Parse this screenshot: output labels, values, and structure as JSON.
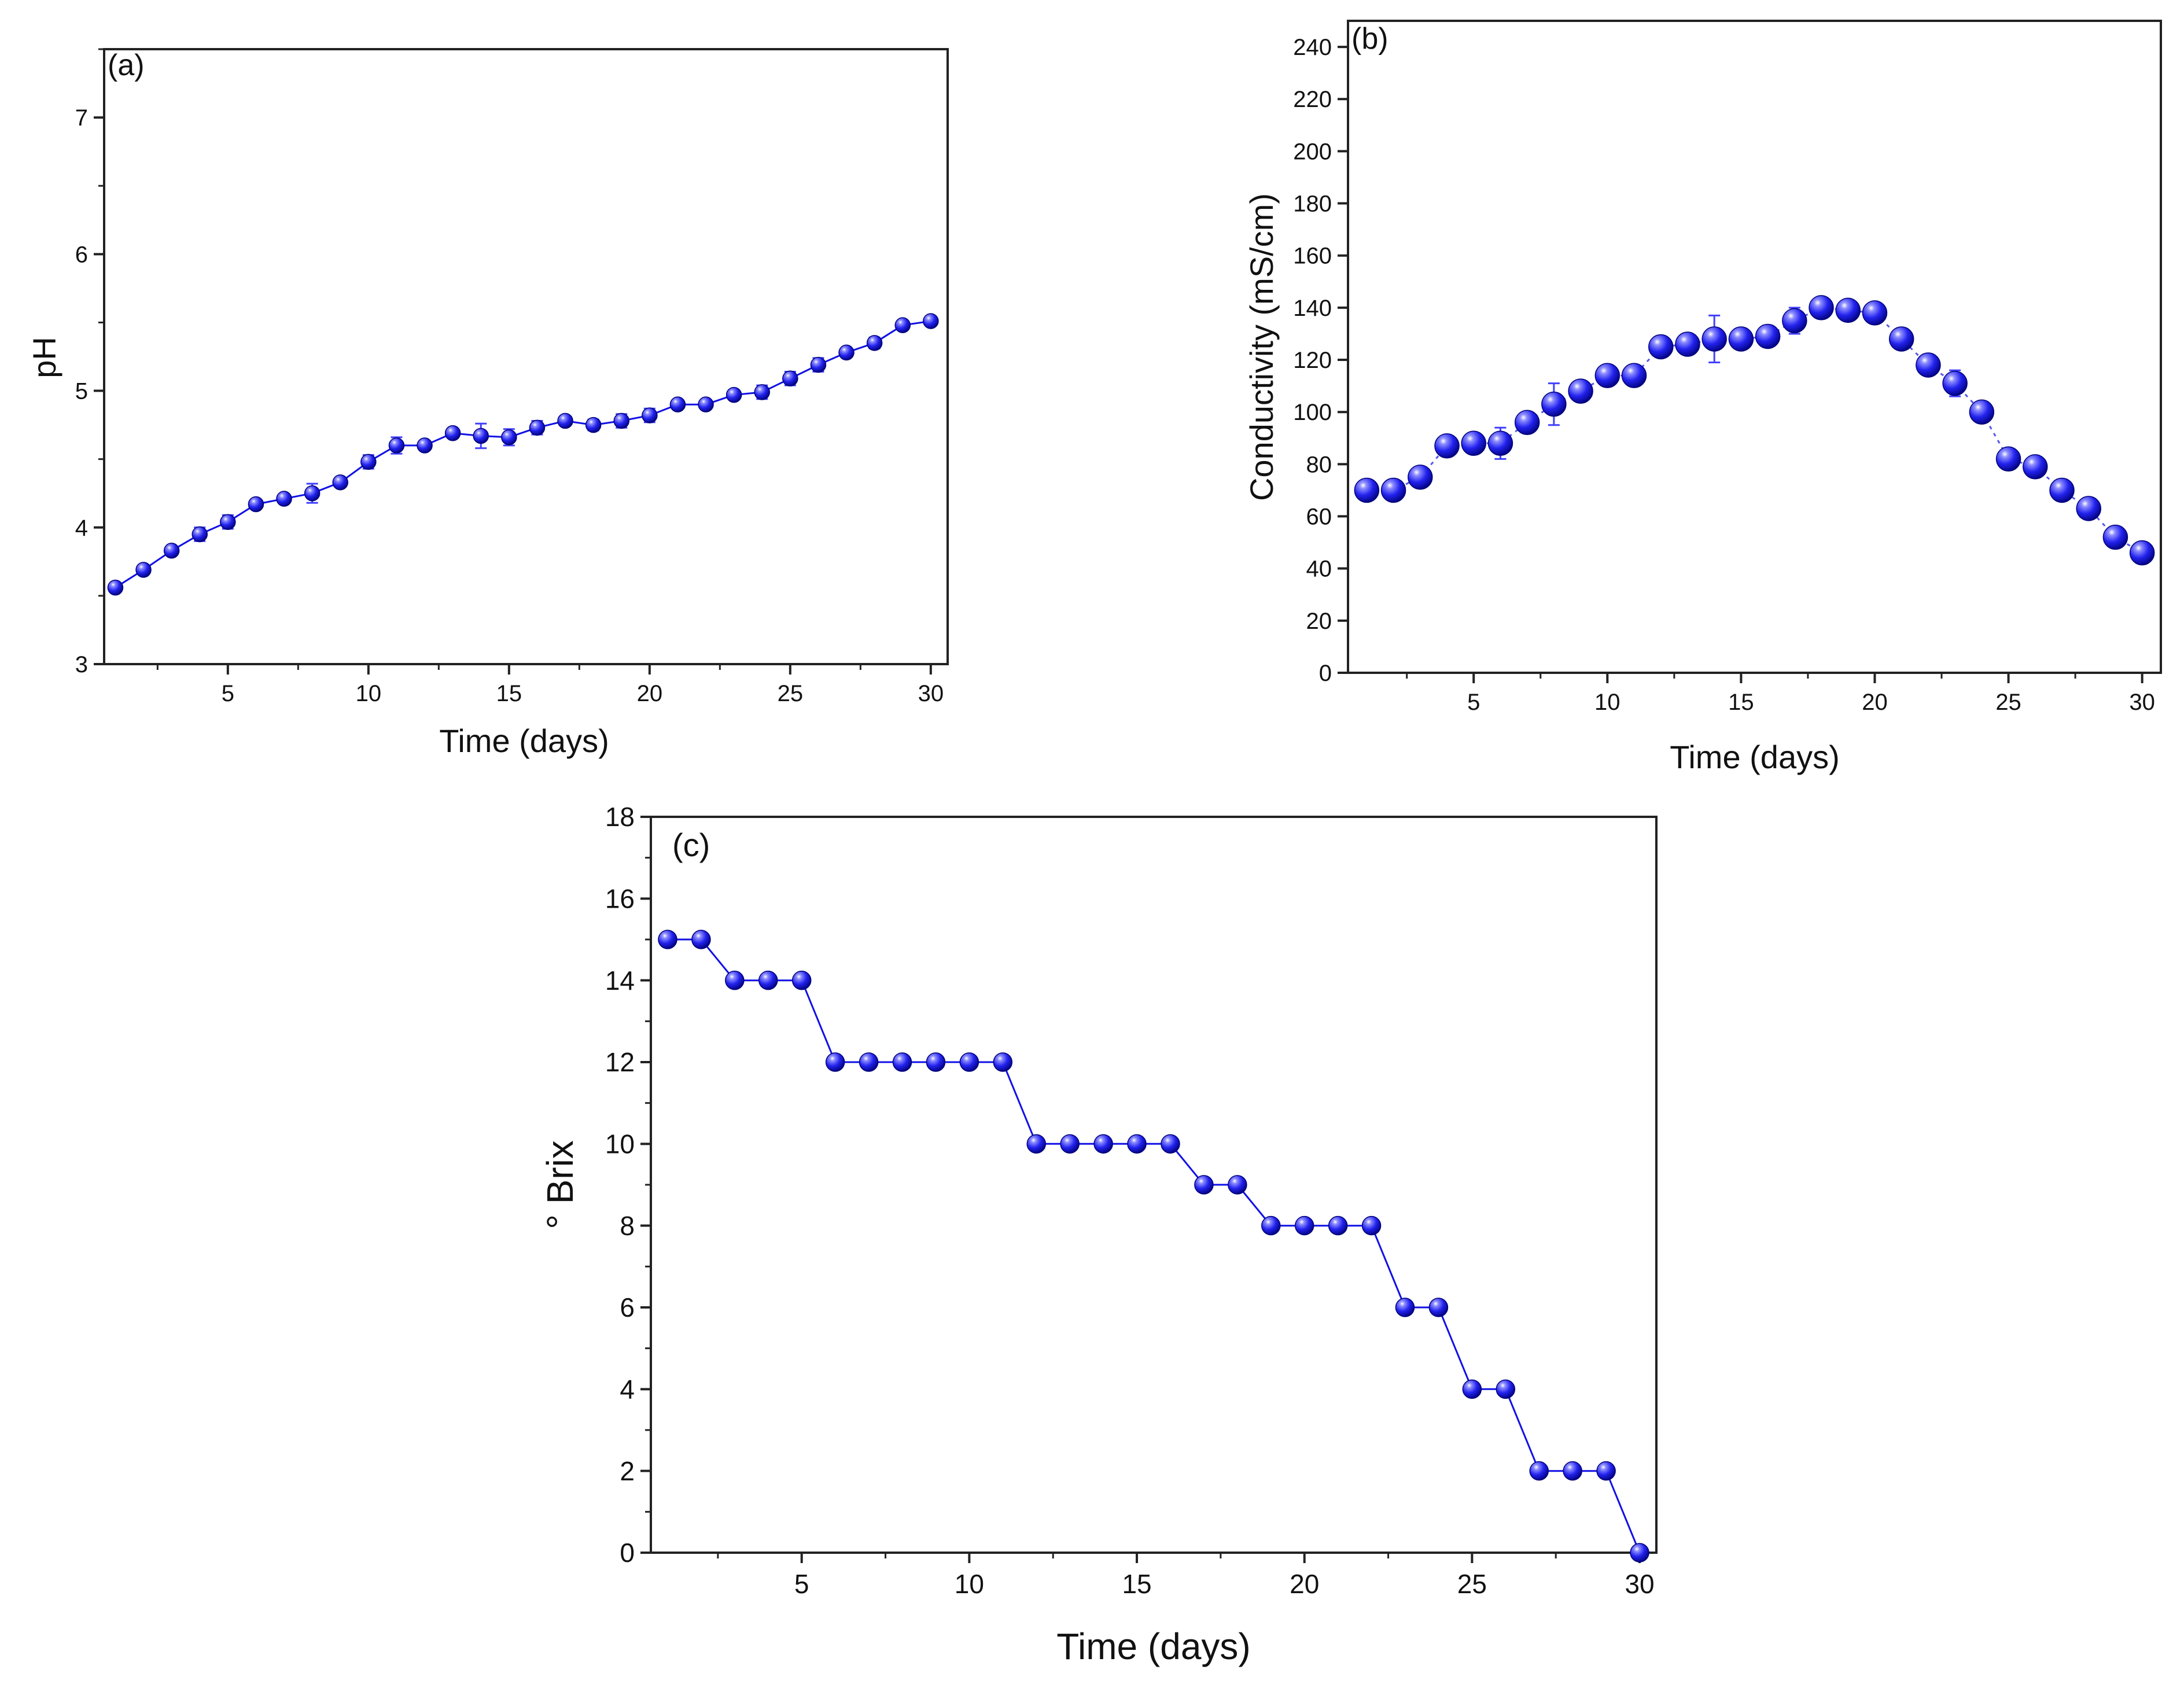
{
  "series_color": "#1010e6",
  "chart_data": [
    {
      "id": "a",
      "type": "line",
      "panel_label": "(a)",
      "xlabel": "Time (days)",
      "ylabel": "pH",
      "xlim": [
        0.6,
        30.6
      ],
      "ylim": [
        3,
        7.5
      ],
      "x_ticks": [
        5,
        10,
        15,
        20,
        25,
        30
      ],
      "y_ticks": [
        3,
        4,
        5,
        6,
        7
      ],
      "x": [
        1,
        2,
        3,
        4,
        5,
        6,
        7,
        8,
        9,
        10,
        11,
        12,
        13,
        14,
        15,
        16,
        17,
        18,
        19,
        20,
        21,
        22,
        23,
        24,
        25,
        26,
        27,
        28,
        29,
        30
      ],
      "values": [
        3.56,
        3.69,
        3.83,
        3.95,
        4.04,
        4.17,
        4.21,
        4.25,
        4.33,
        4.48,
        4.6,
        4.6,
        4.69,
        4.67,
        4.66,
        4.73,
        4.78,
        4.75,
        4.78,
        4.82,
        4.9,
        4.9,
        4.97,
        4.99,
        5.09,
        5.19,
        5.28,
        5.35,
        5.48,
        5.51
      ],
      "errors": [
        0.02,
        0.02,
        0.03,
        0.05,
        0.05,
        0.03,
        0.03,
        0.07,
        0.03,
        0.05,
        0.06,
        0.03,
        0.03,
        0.09,
        0.06,
        0.05,
        0.03,
        0.04,
        0.05,
        0.05,
        0.03,
        0.03,
        0.03,
        0.05,
        0.05,
        0.05,
        0.03,
        0.04,
        0.03,
        0.02
      ]
    },
    {
      "id": "b",
      "type": "scatter",
      "panel_label": "(b)",
      "xlabel": "Time (days)",
      "ylabel": "Conductivity (mS/cm)",
      "xlim": [
        0.3,
        30.7
      ],
      "ylim": [
        0,
        250
      ],
      "x_ticks": [
        5,
        10,
        15,
        20,
        25,
        30
      ],
      "y_ticks": [
        0,
        20,
        40,
        60,
        80,
        100,
        120,
        140,
        160,
        180,
        200,
        220,
        240
      ],
      "x": [
        1,
        2,
        3,
        4,
        5,
        6,
        7,
        8,
        9,
        10,
        11,
        12,
        13,
        14,
        15,
        16,
        17,
        18,
        19,
        20,
        21,
        22,
        23,
        24,
        25,
        26,
        27,
        28,
        29,
        30
      ],
      "values": [
        70,
        70,
        75,
        87,
        88,
        88,
        96,
        103,
        108,
        114,
        114,
        125,
        126,
        128,
        128,
        129,
        135,
        140,
        139,
        138,
        128,
        118,
        111,
        100,
        82,
        79,
        70,
        63,
        52,
        46
      ],
      "errors": [
        2,
        2,
        2,
        2,
        2,
        6,
        2,
        8,
        2,
        2,
        2,
        2,
        2,
        9,
        2,
        2,
        5,
        2,
        2,
        2,
        2,
        3,
        5,
        2,
        2,
        2,
        2,
        2,
        2,
        2
      ]
    },
    {
      "id": "c",
      "type": "line",
      "panel_label": "(c)",
      "xlabel": "Time (days)",
      "ylabel": "° Brix",
      "xlim": [
        0.5,
        30.5
      ],
      "ylim": [
        0,
        18
      ],
      "x_ticks": [
        5,
        10,
        15,
        20,
        25,
        30
      ],
      "y_ticks": [
        0,
        2,
        4,
        6,
        8,
        10,
        12,
        14,
        16,
        18
      ],
      "x": [
        1,
        2,
        3,
        4,
        5,
        6,
        7,
        8,
        9,
        10,
        11,
        12,
        13,
        14,
        15,
        16,
        17,
        18,
        19,
        20,
        21,
        22,
        23,
        24,
        25,
        26,
        27,
        28,
        29,
        30
      ],
      "values": [
        15,
        15,
        14,
        14,
        14,
        12,
        12,
        12,
        12,
        12,
        12,
        10,
        10,
        10,
        10,
        10,
        9,
        9,
        8,
        8,
        8,
        8,
        6,
        6,
        4,
        4,
        2,
        2,
        2,
        0
      ]
    }
  ]
}
